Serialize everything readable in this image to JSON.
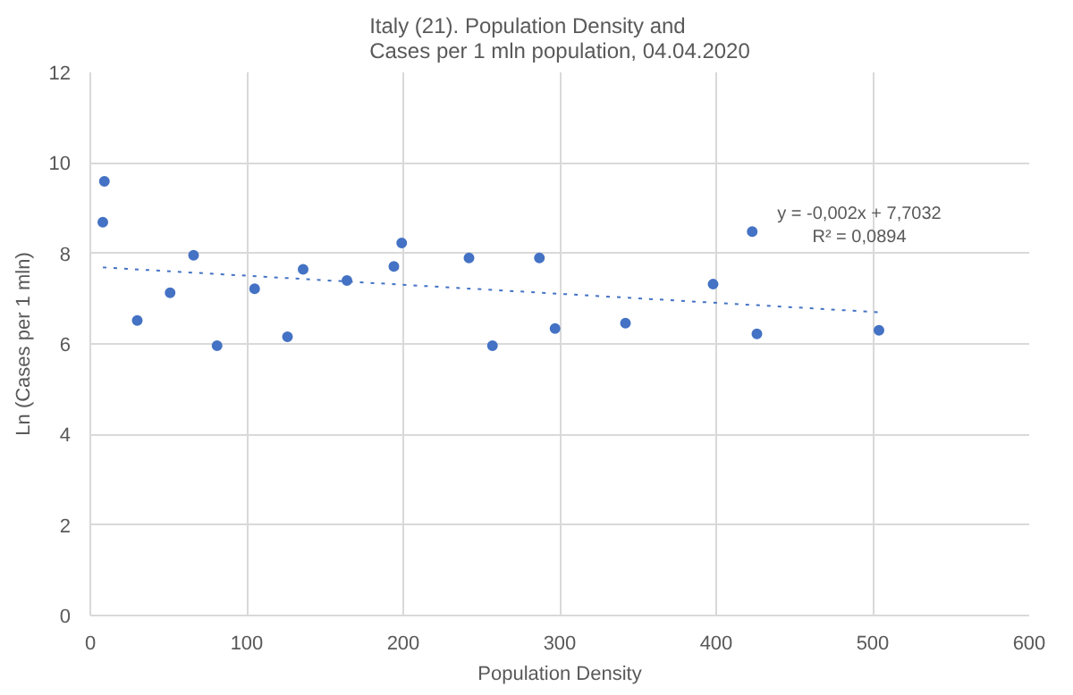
{
  "chart_data": {
    "type": "scatter",
    "title": "Italy (21). Population Density and\nCases per 1 mln population, 04.04.2020",
    "xlabel": "Population Density",
    "ylabel": "Ln (Cases per 1 mln)",
    "x": [
      9,
      8,
      30,
      51,
      66,
      81,
      105,
      126,
      136,
      164,
      194,
      199,
      242,
      257,
      287,
      297,
      342,
      398,
      423,
      426,
      504
    ],
    "series": [
      {
        "color": "#4472c4",
        "marker": "circle",
        "values": [
          9.59,
          8.69,
          6.52,
          7.13,
          7.96,
          5.96,
          7.22,
          6.16,
          7.65,
          7.4,
          7.71,
          8.23,
          7.9,
          5.96,
          7.9,
          6.34,
          6.46,
          7.32,
          8.48,
          6.22,
          6.3
        ]
      },
      {
        "type": "line",
        "color": "#4472c4",
        "line_style": "dotted",
        "x": [
          8,
          504
        ],
        "values": [
          7.69,
          6.7
        ]
      }
    ],
    "annotations": [
      "y = -0,002x + 7,7032\nR² = 0,0894"
    ],
    "xlim": [
      0,
      600
    ],
    "xticks": [
      0,
      100,
      200,
      300,
      400,
      500,
      600
    ],
    "ylim": [
      0,
      12
    ],
    "yticks": [
      0,
      2,
      4,
      6,
      8,
      10,
      12
    ],
    "grid": true
  }
}
